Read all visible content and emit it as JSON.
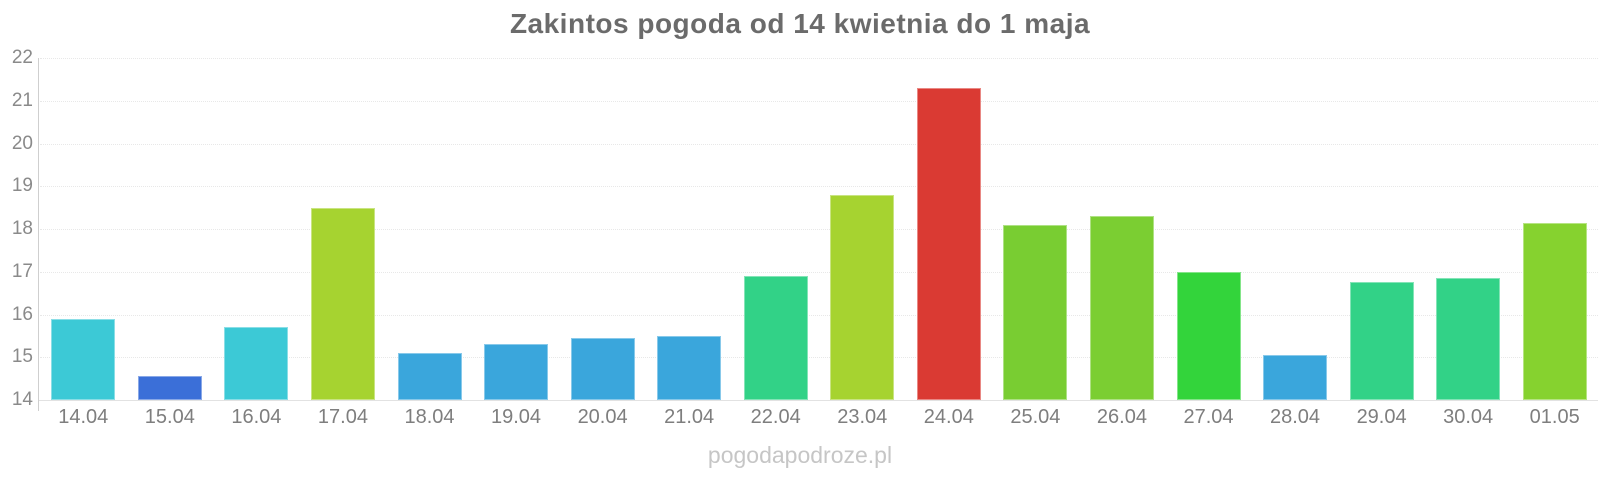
{
  "title": "Zakintos pogoda od 14 kwietnia do 1 maja",
  "watermark": "pogodapodroze.pl",
  "chart_data": {
    "type": "bar",
    "title": "Zakintos pogoda od 14 kwietnia do 1 maja",
    "categories": [
      "14.04",
      "15.04",
      "16.04",
      "17.04",
      "18.04",
      "19.04",
      "20.04",
      "21.04",
      "22.04",
      "23.04",
      "24.04",
      "25.04",
      "26.04",
      "27.04",
      "28.04",
      "29.04",
      "30.04",
      "01.05"
    ],
    "values": [
      15.9,
      14.55,
      15.7,
      18.5,
      15.1,
      15.3,
      15.45,
      15.5,
      16.9,
      18.8,
      21.3,
      18.1,
      18.3,
      17.0,
      15.05,
      16.75,
      16.85,
      18.15
    ],
    "bar_colors": [
      "#3cc9d6",
      "#3b6fd8",
      "#3cc9d6",
      "#a6d330",
      "#3aa6dc",
      "#3aa6dc",
      "#3aa6dc",
      "#3aa6dc",
      "#32d287",
      "#a6d330",
      "#da3a33",
      "#79cd32",
      "#7bce32",
      "#33d43b",
      "#3aa6dc",
      "#32d287",
      "#32d287",
      "#86d22f"
    ],
    "xlabel": "",
    "ylabel": "",
    "ylim": [
      14,
      22
    ],
    "yticks": [
      22,
      21,
      20,
      19,
      18,
      17,
      16,
      15,
      14
    ],
    "grid": "horizontal dotted gridlines at each integer",
    "legend": "none"
  }
}
